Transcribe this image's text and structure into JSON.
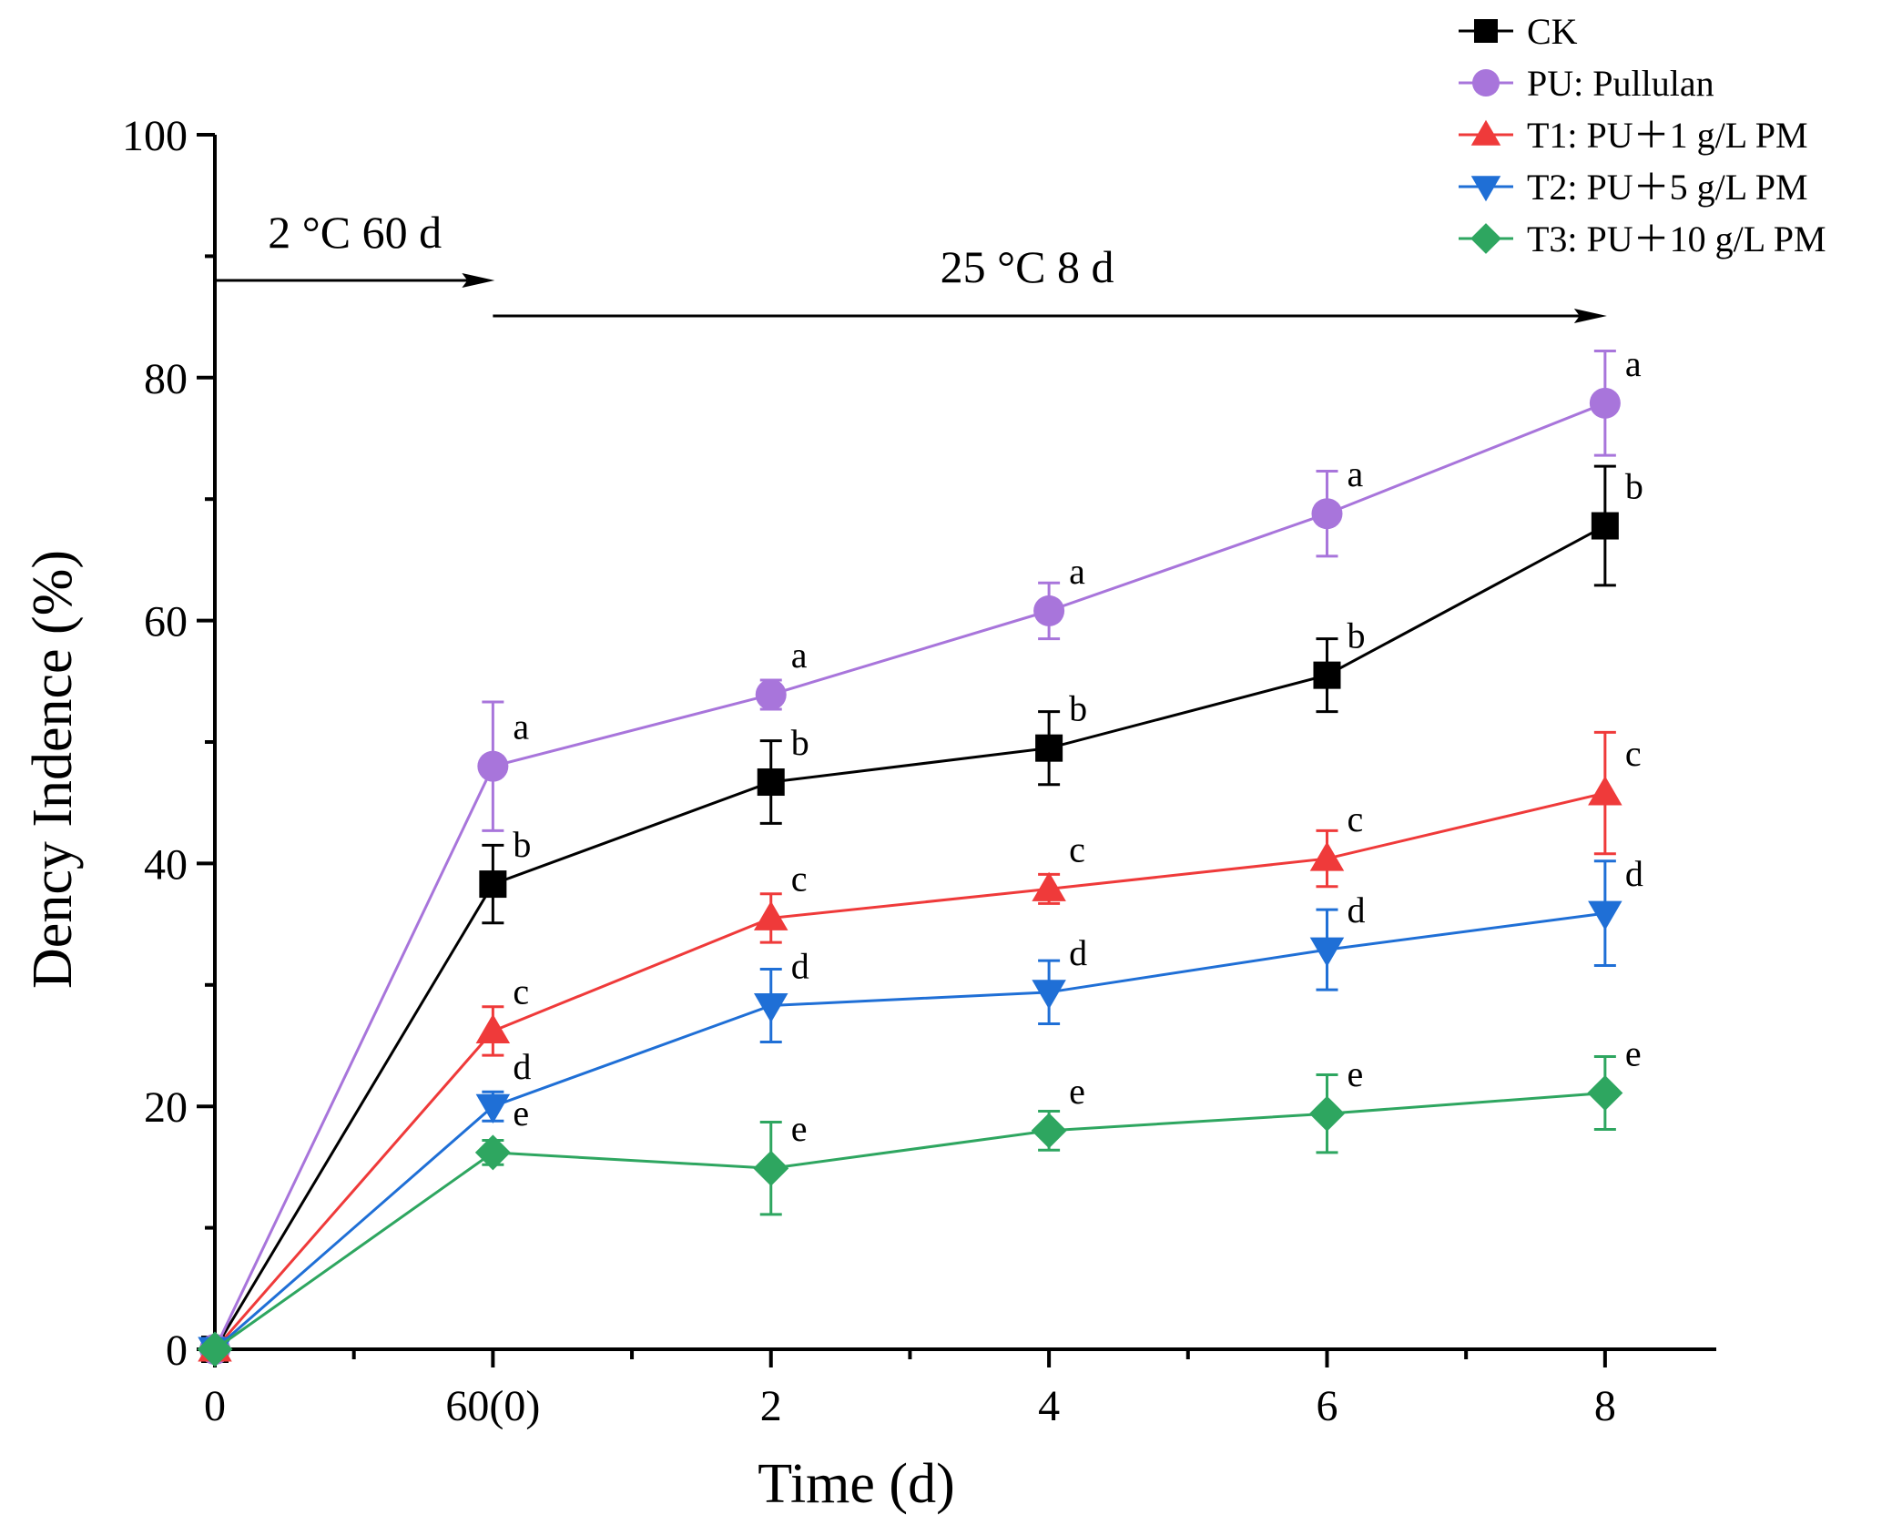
{
  "chart_data": {
    "type": "line",
    "xlabel": "Time (d)",
    "ylabel": "Dency Indence (%)",
    "ylim": [
      0,
      100
    ],
    "xlim": [
      0,
      5.4
    ],
    "y_ticks": [
      0,
      20,
      40,
      60,
      80,
      100
    ],
    "x_tick_positions": [
      0,
      1,
      2,
      3,
      4,
      5
    ],
    "x_tick_labels": [
      "0",
      "60(0)",
      "2",
      "4",
      "6",
      "8"
    ],
    "grid": false,
    "legend_position": "top-right",
    "annotations": [
      {
        "text": "2 °C 60 d",
        "from_x": 0,
        "to_x": 1
      },
      {
        "text": "25 °C 8 d",
        "from_x": 1,
        "to_x": 5
      }
    ],
    "series": [
      {
        "name": "CK",
        "color": "#000000",
        "marker": "square",
        "x": [
          0,
          1,
          2,
          3,
          4,
          5
        ],
        "values": [
          0,
          38.3,
          46.7,
          49.5,
          55.5,
          67.8
        ],
        "errors": [
          0,
          3.2,
          3.4,
          3.0,
          3.0,
          4.9
        ],
        "letters": [
          "",
          "b",
          "b",
          "b",
          "b",
          "b"
        ]
      },
      {
        "name": "PU: Pullulan",
        "color": "#A875DB",
        "marker": "circle",
        "x": [
          0,
          1,
          2,
          3,
          4,
          5
        ],
        "values": [
          0,
          48.0,
          53.9,
          60.8,
          68.8,
          77.9
        ],
        "errors": [
          0,
          5.3,
          1.2,
          2.3,
          3.5,
          4.3
        ],
        "letters": [
          "",
          "a",
          "a",
          "a",
          "a",
          "a"
        ]
      },
      {
        "name": "T1: PU＋1 g/L PM",
        "color": "#EF3A3A",
        "marker": "triangle-up",
        "x": [
          0,
          1,
          2,
          3,
          4,
          5
        ],
        "values": [
          0,
          26.2,
          35.5,
          37.9,
          40.4,
          45.8
        ],
        "errors": [
          0,
          2.0,
          2.0,
          1.2,
          2.3,
          5.0
        ],
        "letters": [
          "",
          "c",
          "c",
          "c",
          "c",
          "c"
        ]
      },
      {
        "name": "T2: PU＋5 g/L PM",
        "color": "#1F6FD6",
        "marker": "triangle-down",
        "x": [
          0,
          1,
          2,
          3,
          4,
          5
        ],
        "values": [
          0,
          20.0,
          28.3,
          29.4,
          32.9,
          35.9
        ],
        "errors": [
          0,
          1.2,
          3.0,
          2.6,
          3.3,
          4.3
        ],
        "letters": [
          "",
          "d",
          "d",
          "d",
          "d",
          "d"
        ]
      },
      {
        "name": "T3: PU＋10 g/L PM",
        "color": "#2EA660",
        "marker": "diamond",
        "x": [
          0,
          1,
          2,
          3,
          4,
          5
        ],
        "values": [
          0,
          16.2,
          14.9,
          18.0,
          19.4,
          21.1
        ],
        "errors": [
          0,
          1.0,
          3.8,
          1.6,
          3.2,
          3.0
        ],
        "letters": [
          "",
          "e",
          "e",
          "e",
          "e",
          "e"
        ]
      }
    ]
  }
}
